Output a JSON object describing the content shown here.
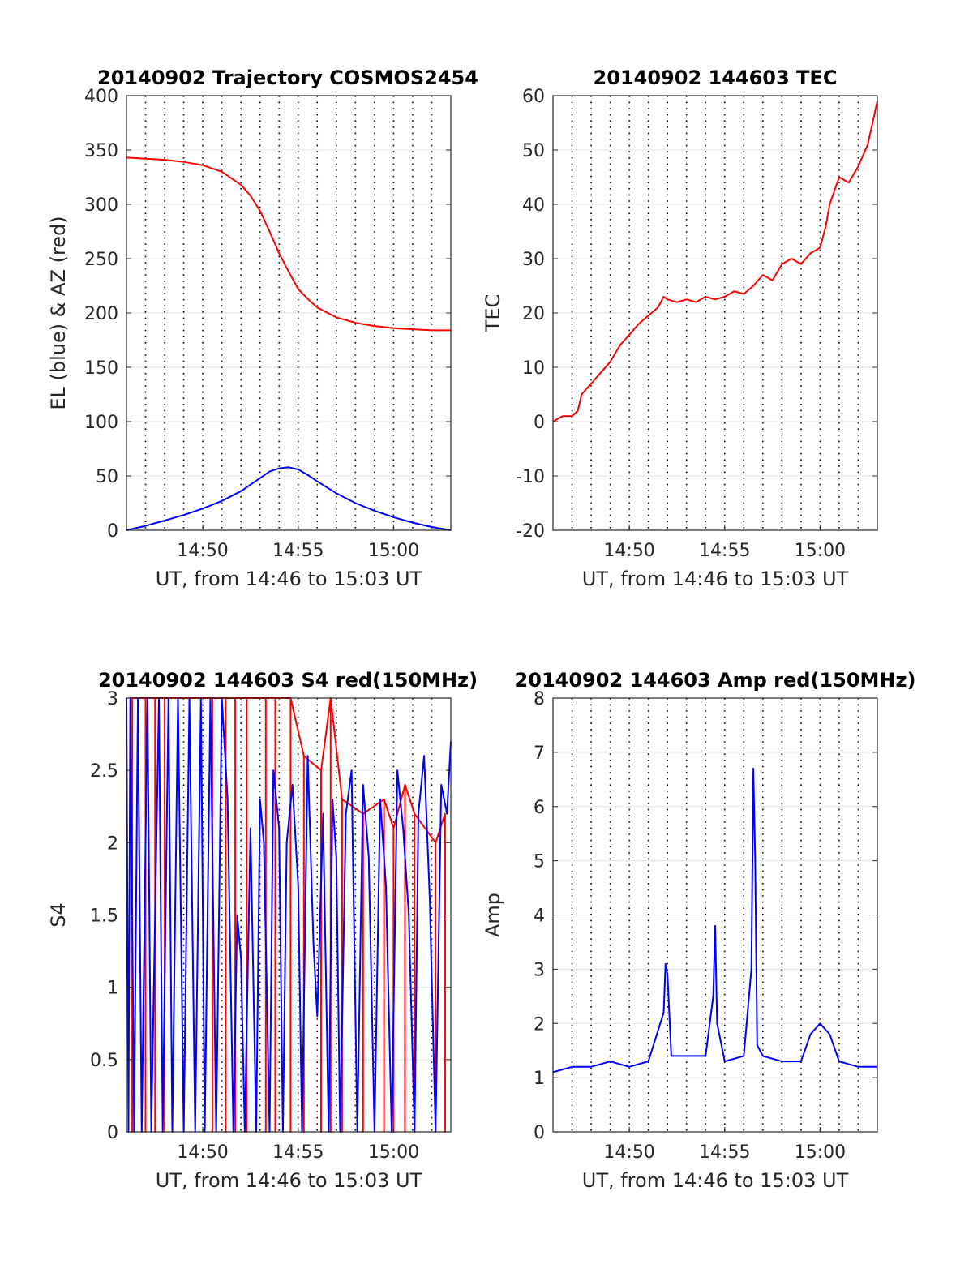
{
  "chart_data": [
    {
      "type": "line",
      "title": "20140902 Trajectory COSMOS2454",
      "xlabel": "UT, from 14:46 to 15:03 UT",
      "ylabel": "EL (blue) & AZ (red)",
      "xlim": [
        0,
        17
      ],
      "ylim": [
        0,
        400
      ],
      "yticks": [
        0,
        50,
        100,
        150,
        200,
        250,
        300,
        350,
        400
      ],
      "ytick_labels": [
        "0",
        "50",
        "100",
        "150",
        "200",
        "250",
        "300",
        "350",
        "400"
      ],
      "xticks": [
        4,
        9,
        14
      ],
      "xtick_labels": [
        "14:50",
        "14:55",
        "15:00"
      ],
      "grid": "dotted vertical every 1 min",
      "series": [
        {
          "color": "#ff0000",
          "x": [
            0,
            1,
            2,
            3,
            4,
            5,
            6,
            6.5,
            7,
            7.5,
            8,
            8.5,
            9,
            9.5,
            10,
            11,
            12,
            13,
            14,
            15,
            16,
            17
          ],
          "y": [
            343,
            342,
            341,
            339,
            336,
            330,
            318,
            308,
            294,
            275,
            255,
            238,
            222,
            213,
            205,
            196,
            191,
            188,
            186,
            185,
            184,
            184
          ]
        },
        {
          "color": "#0000ff",
          "x": [
            0,
            1,
            2,
            3,
            4,
            5,
            6,
            7,
            7.5,
            8,
            8.5,
            9,
            9.5,
            10,
            11,
            12,
            13,
            14,
            15,
            16,
            17
          ],
          "y": [
            0,
            4,
            9,
            14,
            20,
            27,
            36,
            48,
            54,
            57,
            58,
            56,
            51,
            45,
            34,
            25,
            18,
            12,
            7,
            3,
            0
          ]
        }
      ]
    },
    {
      "type": "line",
      "title": "20140902 144603 TEC",
      "xlabel": "UT, from 14:46 to 15:03 UT",
      "ylabel": "TEC",
      "xlim": [
        0,
        17
      ],
      "ylim": [
        -20,
        60
      ],
      "yticks": [
        -20,
        -10,
        0,
        10,
        20,
        30,
        40,
        50,
        60
      ],
      "ytick_labels": [
        "-20",
        "-10",
        "0",
        "10",
        "20",
        "30",
        "40",
        "50",
        "60"
      ],
      "xticks": [
        4,
        9,
        14
      ],
      "xtick_labels": [
        "14:50",
        "14:55",
        "15:00"
      ],
      "grid": "dotted vertical every 1 min",
      "series": [
        {
          "color": "#ff0000",
          "x": [
            0,
            0.5,
            1,
            1.3,
            1.5,
            2,
            2.5,
            3,
            3.5,
            4,
            4.5,
            5,
            5.5,
            5.8,
            6,
            6.5,
            7,
            7.5,
            8,
            8.5,
            9,
            9.5,
            10,
            10.5,
            11,
            11.5,
            12,
            12.5,
            13,
            13.5,
            14,
            14.3,
            14.5,
            15,
            15.5,
            16,
            16.5,
            17
          ],
          "y": [
            0,
            1,
            1,
            2,
            5,
            7,
            9,
            11,
            14,
            16,
            18,
            19.5,
            21,
            23,
            22.5,
            22,
            22.5,
            22,
            23,
            22.5,
            23,
            24,
            23.5,
            25,
            27,
            26,
            29,
            30,
            29,
            31,
            32,
            36,
            40,
            45,
            44,
            47,
            51,
            59
          ]
        }
      ]
    },
    {
      "type": "line",
      "title": "20140902 144603 S4 red(150MHz)",
      "xlabel": "UT, from 14:46 to 15:03 UT",
      "ylabel": "S4",
      "xlim": [
        0,
        17
      ],
      "ylim": [
        0,
        3
      ],
      "yticks": [
        0,
        0.5,
        1,
        1.5,
        2,
        2.5,
        3
      ],
      "ytick_labels": [
        "0",
        "0.5",
        "1",
        "1.5",
        "2",
        "2.5",
        "3"
      ],
      "xticks": [
        4,
        9,
        14
      ],
      "xtick_labels": [
        "14:50",
        "14:55",
        "15:00"
      ],
      "grid": "dotted vertical every 1 min",
      "series": [
        {
          "color": "#ff0000",
          "x": [
            0.3,
            0.3,
            0.3,
            1.0,
            1.0,
            1.0,
            1.5,
            1.5,
            1.5,
            2.0,
            2.0,
            2.0,
            4.5,
            4.5,
            4.5,
            5.2,
            5.2,
            5.2,
            5.7,
            5.7,
            5.7,
            6.3,
            6.3,
            6.3,
            7.3,
            7.3,
            7.3,
            7.8,
            7.8,
            7.8,
            8.6,
            8.6,
            8.6,
            9.3,
            9.3,
            9.3,
            10.2,
            10.2,
            10.2,
            10.7,
            10.7,
            10.7,
            11.3,
            11.3,
            11.3,
            12.4,
            12.4,
            12.4,
            13.5,
            13.5,
            13.5,
            14.0,
            14.0,
            14.0,
            14.6,
            14.6,
            14.6,
            15.1,
            15.1,
            15.1,
            16.2,
            16.2,
            16.2,
            16.7,
            16.7,
            16.7
          ],
          "y": [
            3,
            0,
            3,
            3,
            0,
            3,
            3,
            0,
            3,
            3,
            0,
            3,
            3,
            0,
            3,
            3,
            0,
            3,
            3,
            0,
            3,
            3,
            0,
            3,
            3,
            0,
            3,
            3,
            0,
            3,
            3,
            0,
            3,
            2.6,
            0,
            2.6,
            2.5,
            0,
            2.5,
            3,
            0,
            3,
            2.3,
            0,
            2.3,
            2.2,
            0,
            2.2,
            2.3,
            0,
            2.3,
            2.1,
            0,
            2.1,
            2.4,
            0,
            2.4,
            2.2,
            0,
            2.2,
            2.0,
            0,
            2.0,
            2.2,
            0,
            2.2
          ]
        },
        {
          "color": "#0000ff",
          "x": [
            0,
            0.1,
            0.2,
            0.4,
            0.6,
            0.8,
            1.1,
            1.3,
            1.7,
            1.9,
            2.2,
            2.4,
            2.7,
            3.0,
            3.3,
            3.6,
            3.9,
            4.1,
            4.4,
            4.7,
            5.0,
            5.3,
            5.6,
            5.8,
            6.0,
            6.2,
            6.5,
            6.8,
            7.0,
            7.2,
            7.5,
            7.7,
            8.0,
            8.2,
            8.4,
            8.7,
            9.0,
            9.2,
            9.5,
            9.8,
            10.0,
            10.3,
            10.6,
            10.8,
            11.0,
            11.2,
            11.5,
            11.8,
            12.1,
            12.4,
            12.7,
            13.0,
            13.3,
            13.6,
            13.9,
            14.2,
            14.5,
            14.8,
            15.1,
            15.3,
            15.6,
            15.9,
            16.2,
            16.5,
            16.8,
            17
          ],
          "y": [
            3,
            0,
            3,
            0,
            3,
            0,
            3,
            0,
            3,
            0,
            3,
            0,
            3,
            0,
            3,
            0,
            3,
            0,
            3,
            0,
            3,
            2.3,
            0,
            1.5,
            1.2,
            0,
            2.1,
            0,
            2.3,
            2.0,
            0,
            2.5,
            2.1,
            0,
            2.0,
            2.4,
            1.7,
            0,
            2.6,
            1.3,
            0.8,
            2.2,
            0,
            2.3,
            1.9,
            0,
            2.2,
            2.5,
            0,
            2.4,
            1.9,
            0,
            2.3,
            1.7,
            0,
            2.5,
            2.1,
            1.5,
            0,
            2.2,
            2.6,
            1.6,
            0,
            2.4,
            2.2,
            2.7
          ]
        }
      ]
    },
    {
      "type": "line",
      "title": "20140902 144603 Amp red(150MHz)",
      "xlabel": "UT, from 14:46 to 15:03 UT",
      "ylabel": "Amp",
      "xlim": [
        0,
        17
      ],
      "ylim": [
        0,
        8
      ],
      "yticks": [
        0,
        1,
        2,
        3,
        4,
        5,
        6,
        7,
        8
      ],
      "ytick_labels": [
        "0",
        "1",
        "2",
        "3",
        "4",
        "5",
        "6",
        "7",
        "8"
      ],
      "xticks": [
        4,
        9,
        14
      ],
      "xtick_labels": [
        "14:50",
        "14:55",
        "15:00"
      ],
      "grid": "dotted vertical every 1 min",
      "series": [
        {
          "color": "#0000ff",
          "x": [
            0,
            1,
            2,
            3,
            4,
            5,
            5.8,
            5.9,
            6.0,
            6.2,
            7,
            8,
            8.4,
            8.5,
            8.6,
            9,
            10,
            10.4,
            10.5,
            10.6,
            10.7,
            11,
            12,
            13,
            13.5,
            14,
            14.5,
            15,
            16,
            17
          ],
          "y": [
            1.1,
            1.2,
            1.2,
            1.3,
            1.2,
            1.3,
            2.2,
            3.1,
            2.9,
            1.4,
            1.4,
            1.4,
            2.5,
            3.8,
            2.0,
            1.3,
            1.4,
            3.0,
            6.7,
            5.0,
            1.6,
            1.4,
            1.3,
            1.3,
            1.8,
            2.0,
            1.8,
            1.3,
            1.2,
            1.2
          ]
        }
      ]
    }
  ]
}
